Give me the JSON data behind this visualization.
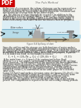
{
  "title": "The Puls Method",
  "background_color": "#f5f5f0",
  "text_color": "#222222",
  "pdf_badge_color": "#cc0000",
  "para1": "In the case of a reservoir, the volume of storage can be expressed as a function of water surface elevation by planimetering the reservoir surface area from the topographic map for successive elevations and multiplying the average area by the water depth.",
  "para2": "Also, the outflow of water through the reservoir (in addition to the uncontrolled releases through sluices, orifices, etc.) depends on the depth of flow over the spillway (Figure 8.4) and thus on the depth of water in the reservoir. A spillway rating curve of the relationship between discharge and water surface elevation is then be prepared.",
  "para3": "Since the outflow and the storage are both functions of water surface elevation or stage, the continuity equation becomes a relation between the known inflow and the unknown water stage, from which the stage can be computed as a function of time. These stages can readily be converted to outflows from the spillway rating curve. For this purpose, Equation 8.8, in numerical form, is rearranged as follows:",
  "equation": "I₁ + I₂ + (2S₁/Δt − Q₁) = (2S₂/Δt + Q₂)          (8.11)",
  "para4": "At the initial time, t = 0 (start of the routing just before flood arrives),     I₁ = I₂ = Q₁ and S₁ corresponds to the storage at the spillway crest elevation. The left-hand side of the equation has known quantities that yield a value of (2S₂/Δt+Q₂), but still does not solve S₂ and Q₂ separately. For computational expediency, by combining storage versus elevation and discharge versus elevation curves, another curve of relation between (2S/Δt+Q) and surface elevation, or alternatively, (2S/Δt+Q) versus Q, is constructed on the same paper for a selected value of Δt.",
  "para5": "Using (2S/Δt+Q) and surface elevation curve, for known (2S₁/Δt+Q₁), the elevation will be obtained which will provide Q₁ and Q₂ directly from storage versus elevation and discharge versus elevation curves, respectively. These values will be used as initial values on the left-hand side of equation (8.11) for the next time step of the routing period. The computation is repeated for the succeeding routing periods.",
  "figure_caption": "Figure 8.4 Spillway of dam",
  "water_color": "#b8dce8",
  "dam_color": "#aaaaaa",
  "ground_color": "#c0b090",
  "sky_color": "#ddeef5",
  "structure_color": "#999999"
}
